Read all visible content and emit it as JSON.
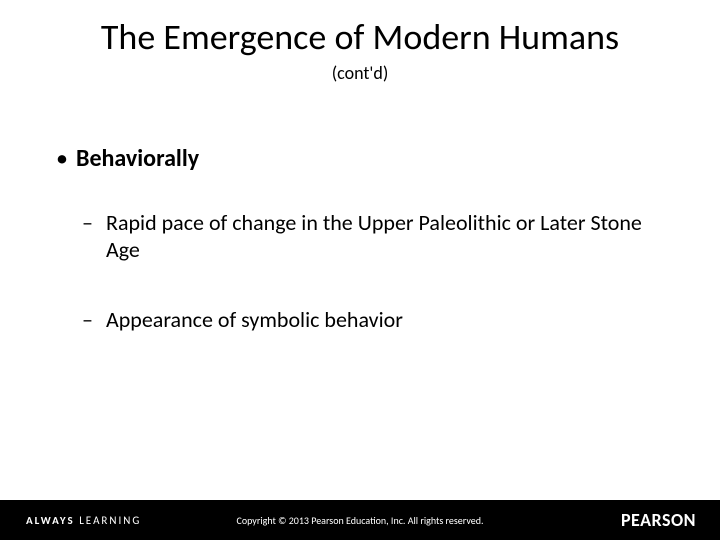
{
  "title": "The Emergence of Modern Humans",
  "subtitle": "(cont'd)",
  "bullets": {
    "level1": [
      {
        "text": "Behaviorally"
      }
    ],
    "level2": [
      {
        "text": "Rapid pace of change in the Upper Paleolithic or Later Stone Age"
      },
      {
        "text": "Appearance of symbolic behavior"
      }
    ]
  },
  "footer": {
    "tagline_bold": "ALWAYS",
    "tagline_light": "LEARNING",
    "copyright": "Copyright © 2013 Pearson Education, Inc. All rights reserved.",
    "brand": "PEARSON"
  },
  "colors": {
    "background": "#ffffff",
    "text": "#000000",
    "footer_bg": "#000000",
    "footer_text": "#ffffff"
  },
  "fontsize": {
    "title": 36,
    "subtitle": 18,
    "level1": 24,
    "level2": 22,
    "tagline": 11,
    "copyright": 10,
    "brand": 18
  }
}
